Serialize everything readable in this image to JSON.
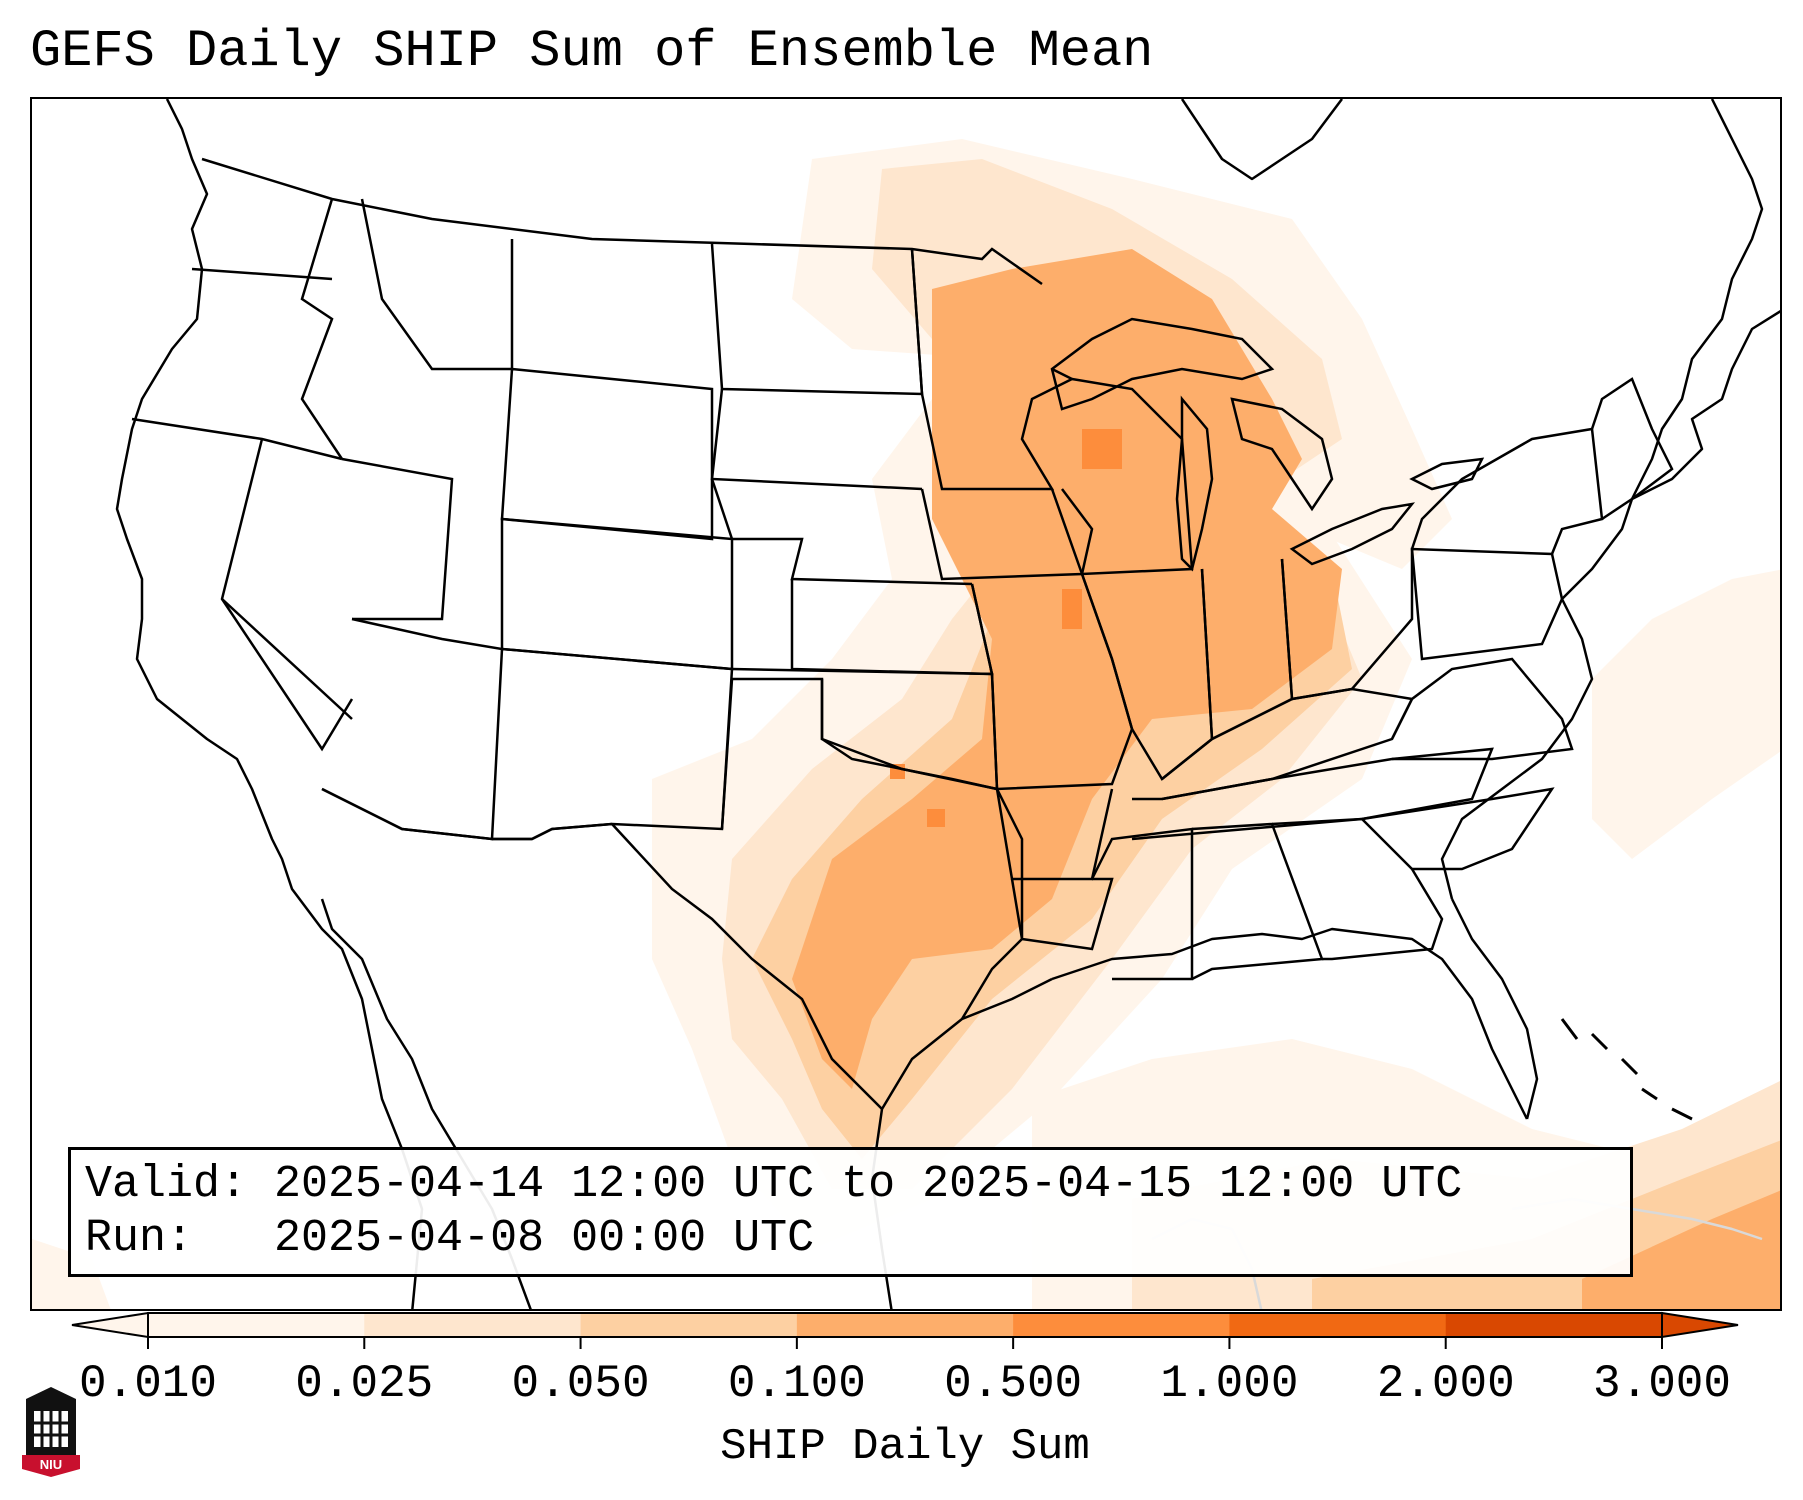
{
  "title": "GEFS Daily SHIP Sum of Ensemble Mean",
  "info": {
    "valid_line": "Valid: 2025-04-14 12:00 UTC to 2025-04-15 12:00 UTC",
    "run_line": "Run:   2025-04-08 00:00 UTC"
  },
  "colorbar": {
    "label": "SHIP Daily Sum",
    "ticks": [
      "0.010",
      "0.025",
      "0.050",
      "0.100",
      "0.500",
      "1.000",
      "2.000",
      "3.000"
    ],
    "colors": [
      "#fff5eb",
      "#fee6ce",
      "#fdd0a2",
      "#fdae6b",
      "#fd8d3c",
      "#f16913",
      "#d94801"
    ],
    "extend": "both"
  },
  "logo": {
    "text": "NIU"
  },
  "colors": {
    "light": "#fee6ce",
    "faint": "#fff5eb",
    "mid": "#fdd0a2",
    "strong": "#fdae6b",
    "peak": "#fd8d3c"
  }
}
